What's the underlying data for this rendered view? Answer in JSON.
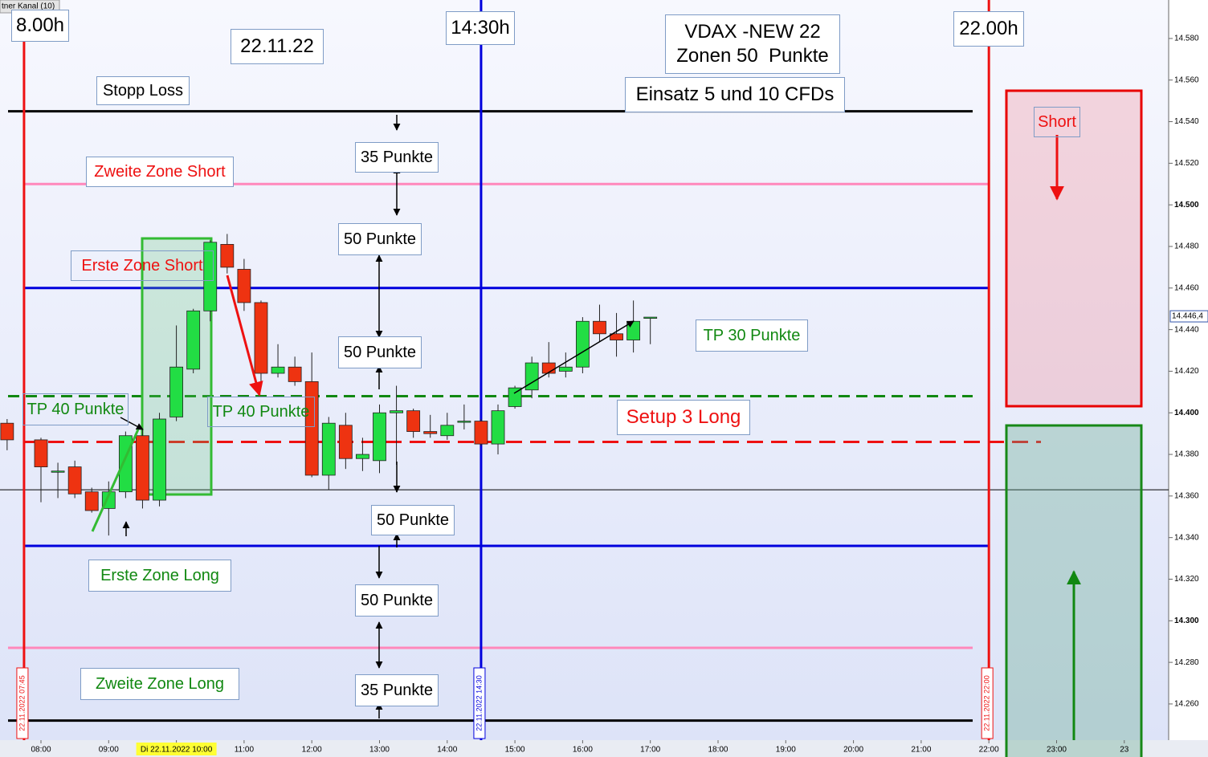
{
  "chart_data": {
    "type": "candlestick",
    "indicator_label": "tner Kanal (10)",
    "x": [
      7.5,
      8,
      8.25,
      8.5,
      8.75,
      9,
      9.25,
      9.5,
      9.75,
      10,
      10.25,
      10.5,
      10.75,
      11,
      11.25,
      11.5,
      11.75,
      12,
      12.25,
      12.5,
      12.75,
      13,
      13.25,
      13.5,
      13.75,
      14,
      14.25,
      14.5,
      14.75,
      15,
      15.25,
      15.5,
      15.75,
      16,
      16.25,
      16.5,
      16.75,
      17
    ],
    "open": [
      14395,
      14387,
      14372,
      14374,
      14362,
      14354,
      14362,
      14389,
      14358,
      14398,
      14421,
      14449,
      14481,
      14469,
      14453,
      14419,
      14422,
      14415,
      14370,
      14394,
      14378,
      14377,
      14400,
      14401,
      14391,
      14389,
      14396,
      14396,
      14385,
      14403,
      14411,
      14424,
      14420,
      14422,
      14444,
      14438,
      14435,
      14446
    ],
    "high": [
      14397,
      14388,
      14376,
      14377,
      14364,
      14367,
      14391,
      14392,
      14400,
      14442,
      14450,
      14483,
      14486,
      14474,
      14454,
      14433,
      14427,
      14429,
      14398,
      14400,
      14388,
      14404,
      14413,
      14402,
      14399,
      14400,
      14404,
      14397,
      14404,
      14413,
      14427,
      14434,
      14429,
      14446,
      14452,
      14448,
      14454,
      14446
    ],
    "low": [
      14382,
      14357,
      14359,
      14359,
      14352,
      14341,
      14359,
      14354,
      14355,
      14396,
      14419,
      14444,
      14467,
      14449,
      14413,
      14417,
      14413,
      14369,
      14363,
      14373,
      14372,
      14371,
      14375,
      14388,
      14388,
      14387,
      14392,
      14384,
      14380,
      14402,
      14407,
      14417,
      14417,
      14419,
      14434,
      14427,
      14429,
      14433
    ],
    "close": [
      14387,
      14374,
      14372,
      14361,
      14353,
      14362,
      14389,
      14358,
      14397,
      14422,
      14449,
      14482,
      14470,
      14453,
      14419,
      14422,
      14415,
      14370,
      14395,
      14378,
      14380,
      14400,
      14401,
      14391,
      14390,
      14394,
      14396,
      14385,
      14401,
      14412,
      14424,
      14419,
      14422,
      14444,
      14438,
      14435,
      14444,
      14446
    ],
    "up_color": "#22dd44",
    "down_color": "#ee3311",
    "xlim": [
      7.395,
      24.655
    ],
    "ylim": [
      14242.6,
      14598.5
    ],
    "xticks": [
      {
        "value": 8,
        "label": "08:00"
      },
      {
        "value": 9,
        "label": "09:00"
      },
      {
        "value": 10,
        "label": "Di 22.11.2022 10:00"
      },
      {
        "value": 11,
        "label": "11:00"
      },
      {
        "value": 12,
        "label": "12:00"
      },
      {
        "value": 13,
        "label": "13:00"
      },
      {
        "value": 14,
        "label": "14:00"
      },
      {
        "value": 15,
        "label": "15:00"
      },
      {
        "value": 16,
        "label": "16:00"
      },
      {
        "value": 17,
        "label": "17:00"
      },
      {
        "value": 18,
        "label": "18:00"
      },
      {
        "value": 19,
        "label": "19:00"
      },
      {
        "value": 20,
        "label": "20:00"
      },
      {
        "value": 21,
        "label": "21:00"
      },
      {
        "value": 22,
        "label": "22:00"
      },
      {
        "value": 23,
        "label": "23:00"
      },
      {
        "value": 24,
        "label": "23"
      }
    ],
    "yticks": [
      {
        "value": 14580,
        "label": "14.580"
      },
      {
        "value": 14560,
        "label": "14.560"
      },
      {
        "value": 14540,
        "label": "14.540"
      },
      {
        "value": 14520,
        "label": "14.520"
      },
      {
        "value": 14500,
        "label": "14.500"
      },
      {
        "value": 14480,
        "label": "14.480"
      },
      {
        "value": 14460,
        "label": "14.460"
      },
      {
        "value": 14440,
        "label": "14.440"
      },
      {
        "value": 14420,
        "label": "14.420"
      },
      {
        "value": 14400,
        "label": "14.400"
      },
      {
        "value": 14380,
        "label": "14.380"
      },
      {
        "value": 14360,
        "label": "14.360"
      },
      {
        "value": 14340,
        "label": "14.340"
      },
      {
        "value": 14320,
        "label": "14.320"
      },
      {
        "value": 14300,
        "label": "14.300"
      },
      {
        "value": 14280,
        "label": "14.280"
      },
      {
        "value": 14260,
        "label": "14.260"
      }
    ],
    "current_price": {
      "value": 14446.4,
      "label": "14.446,4"
    },
    "levels": [
      {
        "value": 14545,
        "color": "#000000"
      },
      {
        "value": 14252,
        "color": "#000000"
      },
      {
        "value": 14510,
        "color": "#ff88bb"
      },
      {
        "value": 14287,
        "color": "#ff88bb"
      },
      {
        "value": 14460,
        "color": "#0000dd"
      },
      {
        "value": 14336,
        "color": "#0000dd"
      },
      {
        "value": 14408,
        "color": "#118811"
      },
      {
        "value": 14386,
        "color": "#ee1111"
      },
      {
        "value": 14363,
        "color": "#000000"
      }
    ],
    "vlines": [
      {
        "x": 7.75,
        "label": "22.11.2022 07:45",
        "color": "#ee1111"
      },
      {
        "x": 14.5,
        "label": "22.11.2022 14:30",
        "color": "#0000dd"
      },
      {
        "x": 22,
        "label": "22.11.2022 22:00",
        "color": "#ee1111"
      }
    ],
    "annotations": [
      "8.00h",
      "22.11.22",
      "14:30h",
      "VDAX -NEW 22",
      "Zonen 50  Punkte",
      "22.00h",
      "Stopp Loss",
      "Einsatz 5 und 10 CFDs",
      "35 Punkte",
      "Zweite Zone Short",
      "Short",
      "50 Punkte",
      "Erste Zone Short",
      "TP 30 Punkte",
      "50 Punkte",
      "TP 40 Punkte",
      "TP 40 Punkte",
      "Setup 3 Long",
      "50 Punkte",
      "Erste Zone Long",
      "50 Punkte",
      "Zweite Zone Long",
      "35 Punkte"
    ]
  }
}
